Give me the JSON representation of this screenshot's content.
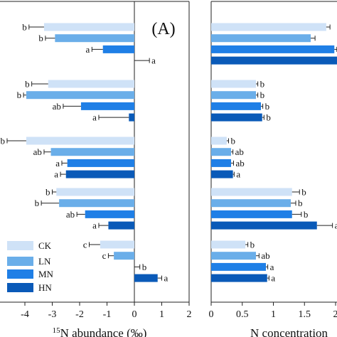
{
  "colors": {
    "CK": "#cfe2f7",
    "LN": "#6aaee9",
    "MN": "#1f7fe6",
    "HN": "#0a5ab8"
  },
  "chart_data": [
    {
      "type": "bar",
      "orientation": "horizontal",
      "panel_label": "(A)",
      "xlabel_sup": "15",
      "xlabel": "N abundance (‰)",
      "xlim": [
        -4.4,
        2
      ],
      "xticks": [
        -4,
        -3,
        -2,
        -1,
        0,
        1,
        2
      ],
      "grid": false,
      "legend_position": "bottom-left",
      "series_names": [
        "CK",
        "LN",
        "MN",
        "HN"
      ],
      "groups": [
        {
          "values": [
            -3.3,
            -2.9,
            -1.15,
            0.0
          ],
          "errors": [
            0.55,
            0.35,
            0.4,
            0.55
          ],
          "letters": [
            "b",
            "b",
            "a",
            "a"
          ]
        },
        {
          "values": [
            -3.15,
            -3.95,
            -1.95,
            -0.2
          ],
          "errors": [
            0.6,
            0.1,
            0.65,
            1.1
          ],
          "letters": [
            "b",
            "b",
            "ab",
            "a"
          ]
        },
        {
          "values": [
            -3.95,
            -3.05,
            -2.45,
            -2.5
          ],
          "errors": [
            0.7,
            0.25,
            0.2,
            0.2
          ],
          "letters": [
            "b",
            "ab",
            "a",
            "a"
          ]
        },
        {
          "values": [
            -2.85,
            -2.75,
            -1.8,
            -0.95
          ],
          "errors": [
            0.15,
            0.65,
            0.3,
            0.35
          ],
          "letters": [
            "b",
            "b",
            "ab",
            "a"
          ]
        },
        {
          "values": [
            -1.25,
            -0.75,
            0.0,
            0.85
          ],
          "errors": [
            0.4,
            0.2,
            0.2,
            0.15
          ],
          "letters": [
            "c",
            "c",
            "b",
            "a"
          ]
        }
      ]
    },
    {
      "type": "bar",
      "orientation": "horizontal",
      "xlabel": "N concentration",
      "xlim": [
        0,
        2
      ],
      "xticks": [
        0,
        0.5,
        1,
        1.5,
        2
      ],
      "grid": false,
      "series_names": [
        "CK",
        "LN",
        "MN",
        "HN"
      ],
      "groups": [
        {
          "values": [
            1.85,
            1.6,
            1.98,
            2.05
          ],
          "errors": [
            0.06,
            0.07,
            0.04,
            0.02
          ],
          "letters": [
            "",
            "",
            "",
            ""
          ]
        },
        {
          "values": [
            0.72,
            0.72,
            0.8,
            0.82
          ],
          "errors": [
            0.03,
            0.03,
            0.03,
            0.03
          ],
          "letters": [
            "b",
            "b",
            "b",
            "b"
          ]
        },
        {
          "values": [
            0.25,
            0.32,
            0.32,
            0.35
          ],
          "errors": [
            0.03,
            0.03,
            0.04,
            0.02
          ],
          "letters": [
            "b",
            "ab",
            "ab",
            "a"
          ]
        },
        {
          "values": [
            1.3,
            1.28,
            1.3,
            1.7
          ],
          "errors": [
            0.12,
            0.08,
            0.15,
            0.25
          ],
          "letters": [
            "b",
            "b",
            "b",
            "a"
          ]
        },
        {
          "values": [
            0.55,
            0.72,
            0.88,
            0.9
          ],
          "errors": [
            0.04,
            0.05,
            0.03,
            0.03
          ],
          "letters": [
            "b",
            "ab",
            "a",
            "a"
          ]
        }
      ]
    }
  ]
}
